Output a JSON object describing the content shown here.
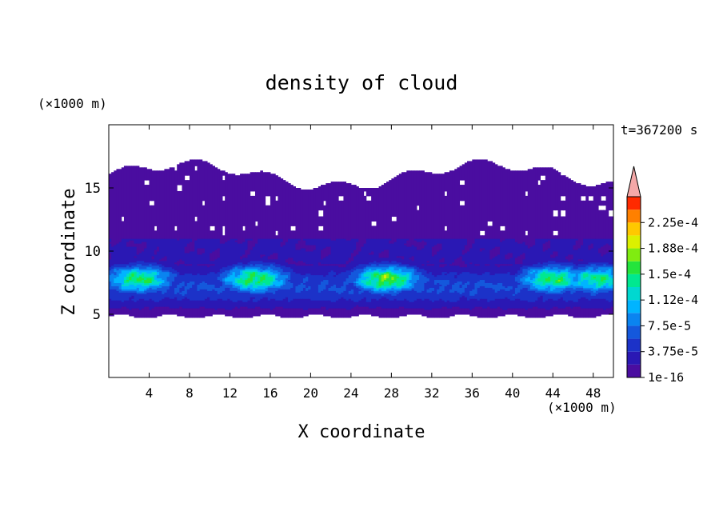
{
  "chart_data": {
    "type": "heatmap",
    "title": "density of cloud",
    "xlabel": "X coordinate",
    "ylabel": "Z coordinate",
    "x_unit": "(×1000 m)",
    "y_unit": "(×1000 m)",
    "time_label": "t=367200 s",
    "xlim": [
      0,
      50
    ],
    "ylim": [
      0,
      20
    ],
    "xticks": [
      4,
      8,
      12,
      16,
      20,
      24,
      28,
      32,
      36,
      40,
      44,
      48
    ],
    "yticks": [
      5,
      10,
      15
    ],
    "colorbar": {
      "levels": [
        1e-16,
        1.875e-05,
        3.75e-05,
        5.625e-05,
        7.5e-05,
        9.375e-05,
        0.0001125,
        0.00013125,
        0.00015,
        0.00016875,
        0.0001875,
        0.00020625,
        0.000225,
        0.00024375
      ],
      "labels": [
        "1e-16",
        "3.75e-5",
        "7.5e-5",
        "1.12e-4",
        "1.5e-4",
        "1.88e-4",
        "2.25e-4"
      ],
      "label_levels": [
        1e-16,
        3.75e-05,
        7.5e-05,
        0.0001125,
        0.00015,
        0.0001875,
        0.000225
      ],
      "colors": [
        "#4a0da0",
        "#2a18b4",
        "#1c32c8",
        "#1458dc",
        "#0a84f0",
        "#00b4ff",
        "#00d8d0",
        "#00e890",
        "#24e43c",
        "#80ec10",
        "#dcf000",
        "#ffc800",
        "#ff8000",
        "#ff2a00"
      ],
      "extend_color": "#f4a8a8"
    },
    "field": {
      "description_free": true,
      "cloud_base_km": 5.0,
      "cloud_top_km": 17.0,
      "core_height_km": 7.8,
      "core_centers_x_km": [
        3,
        14.5,
        27.5,
        44,
        48.5
      ],
      "core_peak_values": [
        0.00017,
        0.000175,
        0.00019,
        0.00017,
        0.00016
      ]
    }
  }
}
